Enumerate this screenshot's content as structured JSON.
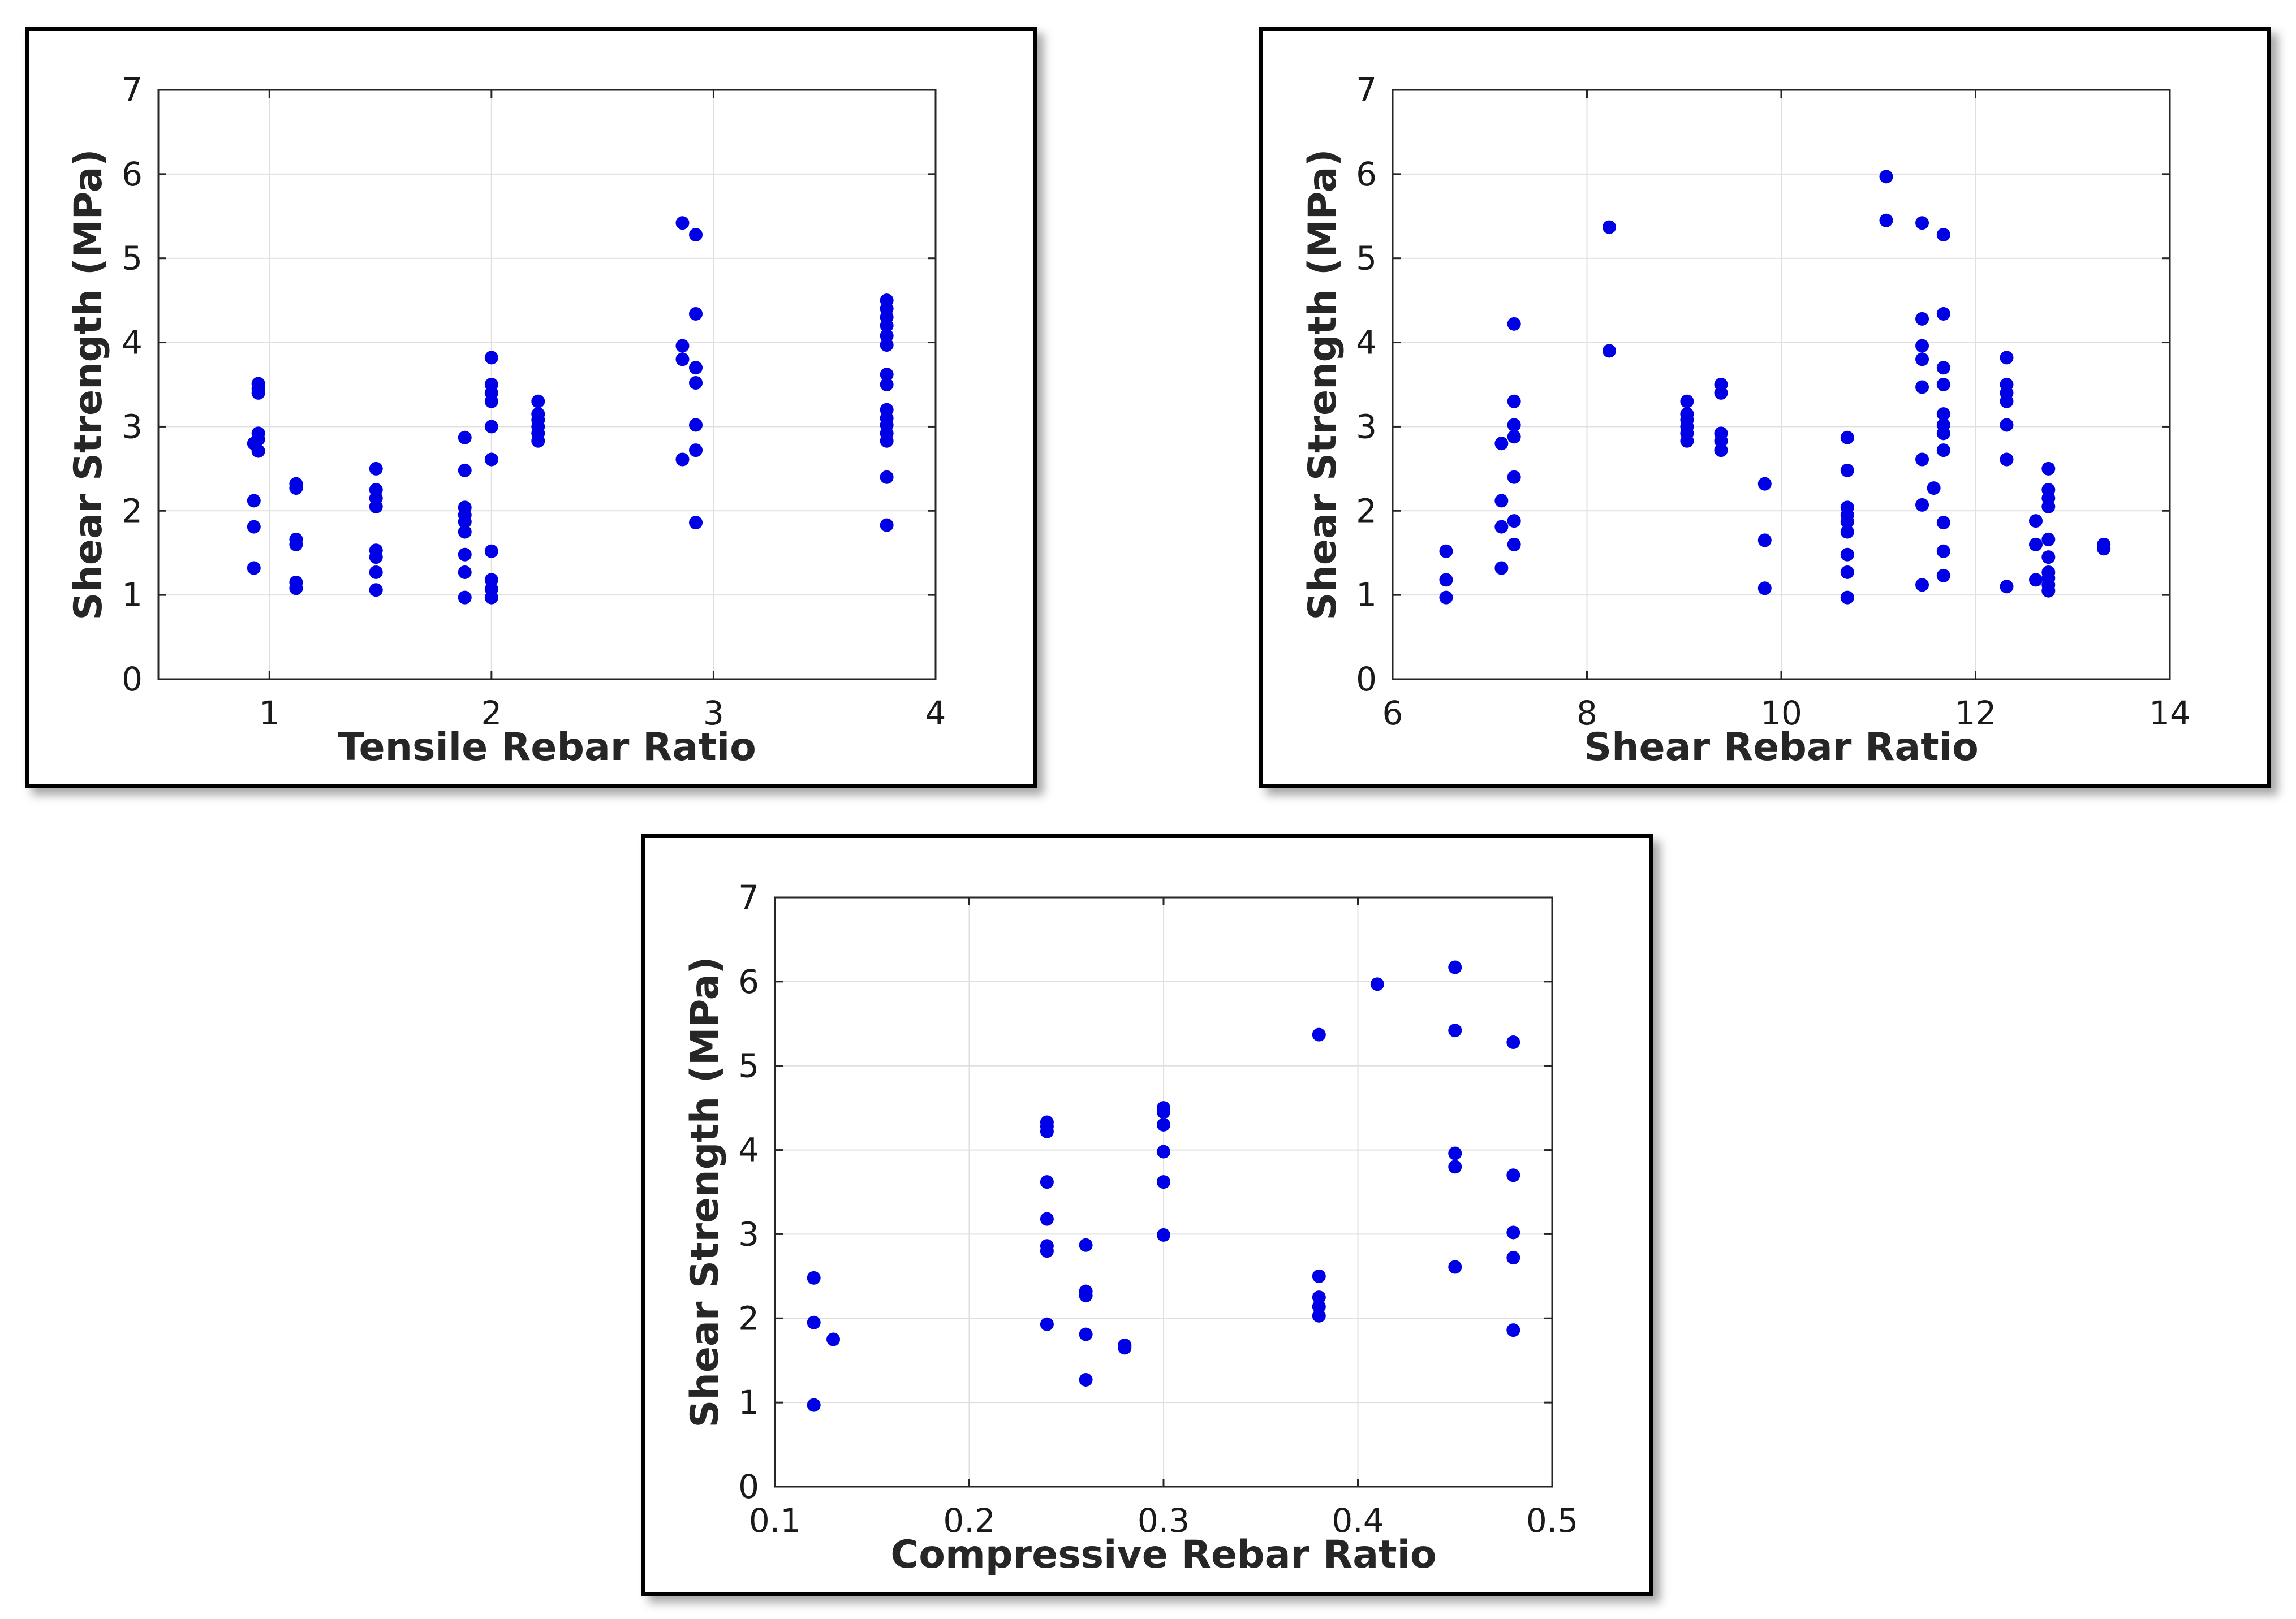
{
  "colors": {
    "marker": "#0000e6",
    "axes": "#262626",
    "grid": "#dfdfdf"
  },
  "chart_data": [
    {
      "type": "scatter",
      "xlabel": "Tensile Rebar Ratio",
      "ylabel": "Shear Strength (MPa)",
      "xlim": [
        0.5,
        4
      ],
      "ylim": [
        0,
        7
      ],
      "xticks": [
        1,
        2,
        3,
        4
      ],
      "xtick_labels": [
        "1",
        "2",
        "3",
        "4"
      ],
      "yticks": [
        0,
        1,
        2,
        3,
        4,
        5,
        6,
        7
      ],
      "ytick_labels": [
        "0",
        "1",
        "2",
        "3",
        "4",
        "5",
        "6",
        "7"
      ],
      "grid": true,
      "points": [
        [
          0.93,
          1.32
        ],
        [
          0.93,
          1.81
        ],
        [
          0.93,
          2.12
        ],
        [
          0.93,
          2.8
        ],
        [
          0.95,
          2.71
        ],
        [
          0.95,
          2.85
        ],
        [
          0.95,
          2.92
        ],
        [
          0.95,
          3.4
        ],
        [
          0.95,
          3.45
        ],
        [
          0.95,
          3.51
        ],
        [
          1.12,
          1.08
        ],
        [
          1.12,
          1.15
        ],
        [
          1.12,
          1.6
        ],
        [
          1.12,
          1.66
        ],
        [
          1.12,
          2.27
        ],
        [
          1.12,
          2.32
        ],
        [
          1.48,
          1.06
        ],
        [
          1.48,
          1.27
        ],
        [
          1.48,
          1.45
        ],
        [
          1.48,
          1.53
        ],
        [
          1.48,
          2.05
        ],
        [
          1.48,
          2.15
        ],
        [
          1.48,
          2.25
        ],
        [
          1.48,
          2.5
        ],
        [
          1.88,
          0.97
        ],
        [
          1.88,
          1.27
        ],
        [
          1.88,
          1.48
        ],
        [
          1.88,
          1.75
        ],
        [
          1.88,
          1.87
        ],
        [
          1.88,
          1.95
        ],
        [
          1.88,
          2.04
        ],
        [
          1.88,
          2.48
        ],
        [
          1.88,
          2.87
        ],
        [
          2.0,
          0.97
        ],
        [
          2.0,
          1.07
        ],
        [
          2.0,
          1.18
        ],
        [
          2.0,
          1.52
        ],
        [
          2.0,
          2.61
        ],
        [
          2.0,
          3.0
        ],
        [
          2.0,
          3.3
        ],
        [
          2.0,
          3.4
        ],
        [
          2.0,
          3.5
        ],
        [
          2.0,
          3.82
        ],
        [
          2.21,
          2.83
        ],
        [
          2.21,
          2.92
        ],
        [
          2.21,
          3.0
        ],
        [
          2.21,
          3.08
        ],
        [
          2.21,
          3.15
        ],
        [
          2.21,
          3.3
        ],
        [
          2.86,
          2.61
        ],
        [
          2.86,
          3.8
        ],
        [
          2.86,
          3.96
        ],
        [
          2.86,
          5.42
        ],
        [
          2.92,
          1.86
        ],
        [
          2.92,
          2.72
        ],
        [
          2.92,
          3.02
        ],
        [
          2.92,
          3.52
        ],
        [
          2.92,
          3.7
        ],
        [
          2.92,
          4.34
        ],
        [
          2.92,
          5.28
        ],
        [
          3.78,
          1.83
        ],
        [
          3.78,
          2.4
        ],
        [
          3.78,
          2.83
        ],
        [
          3.78,
          2.92
        ],
        [
          3.78,
          3.02
        ],
        [
          3.78,
          3.1
        ],
        [
          3.78,
          3.2
        ],
        [
          3.78,
          3.5
        ],
        [
          3.78,
          3.62
        ],
        [
          3.78,
          3.97
        ],
        [
          3.78,
          4.08
        ],
        [
          3.78,
          4.2
        ],
        [
          3.78,
          4.3
        ],
        [
          3.78,
          4.4
        ],
        [
          3.78,
          4.5
        ]
      ]
    },
    {
      "type": "scatter",
      "xlabel": "Shear Rebar Ratio",
      "ylabel": "Shear Strength (MPa)",
      "xlim": [
        6,
        14
      ],
      "ylim": [
        0,
        7
      ],
      "xticks": [
        6,
        8,
        10,
        12,
        14
      ],
      "xtick_labels": [
        "6",
        "8",
        "10",
        "12",
        "14"
      ],
      "yticks": [
        0,
        1,
        2,
        3,
        4,
        5,
        6,
        7
      ],
      "ytick_labels": [
        "0",
        "1",
        "2",
        "3",
        "4",
        "5",
        "6",
        "7"
      ],
      "grid": true,
      "points": [
        [
          6.55,
          0.97
        ],
        [
          6.55,
          1.18
        ],
        [
          6.55,
          1.52
        ],
        [
          7.12,
          1.32
        ],
        [
          7.12,
          1.81
        ],
        [
          7.12,
          2.12
        ],
        [
          7.12,
          2.8
        ],
        [
          7.25,
          1.6
        ],
        [
          7.25,
          1.88
        ],
        [
          7.25,
          2.4
        ],
        [
          7.25,
          2.88
        ],
        [
          7.25,
          3.02
        ],
        [
          7.25,
          3.3
        ],
        [
          7.25,
          4.22
        ],
        [
          8.23,
          3.9
        ],
        [
          8.23,
          5.37
        ],
        [
          9.03,
          2.83
        ],
        [
          9.03,
          2.92
        ],
        [
          9.03,
          3.0
        ],
        [
          9.03,
          3.08
        ],
        [
          9.03,
          3.15
        ],
        [
          9.03,
          3.3
        ],
        [
          9.38,
          2.72
        ],
        [
          9.38,
          2.83
        ],
        [
          9.38,
          2.92
        ],
        [
          9.38,
          3.4
        ],
        [
          9.38,
          3.5
        ],
        [
          9.83,
          1.08
        ],
        [
          9.83,
          1.65
        ],
        [
          9.83,
          2.32
        ],
        [
          10.68,
          0.97
        ],
        [
          10.68,
          1.27
        ],
        [
          10.68,
          1.48
        ],
        [
          10.68,
          1.75
        ],
        [
          10.68,
          1.87
        ],
        [
          10.68,
          1.95
        ],
        [
          10.68,
          2.04
        ],
        [
          10.68,
          2.48
        ],
        [
          10.68,
          2.87
        ],
        [
          11.08,
          5.45
        ],
        [
          11.08,
          5.97
        ],
        [
          11.45,
          1.12
        ],
        [
          11.45,
          2.07
        ],
        [
          11.45,
          2.61
        ],
        [
          11.45,
          3.47
        ],
        [
          11.45,
          3.8
        ],
        [
          11.45,
          3.96
        ],
        [
          11.45,
          4.28
        ],
        [
          11.45,
          5.42
        ],
        [
          11.57,
          2.27
        ],
        [
          11.67,
          1.23
        ],
        [
          11.67,
          1.52
        ],
        [
          11.67,
          1.86
        ],
        [
          11.67,
          2.72
        ],
        [
          11.67,
          2.92
        ],
        [
          11.67,
          3.02
        ],
        [
          11.67,
          3.15
        ],
        [
          11.67,
          3.5
        ],
        [
          11.67,
          3.7
        ],
        [
          11.67,
          4.34
        ],
        [
          11.67,
          5.28
        ],
        [
          12.32,
          1.1
        ],
        [
          12.32,
          2.61
        ],
        [
          12.32,
          3.02
        ],
        [
          12.32,
          3.3
        ],
        [
          12.32,
          3.4
        ],
        [
          12.32,
          3.5
        ],
        [
          12.32,
          3.82
        ],
        [
          12.62,
          1.18
        ],
        [
          12.62,
          1.6
        ],
        [
          12.62,
          1.88
        ],
        [
          12.75,
          1.05
        ],
        [
          12.75,
          1.12
        ],
        [
          12.75,
          1.2
        ],
        [
          12.75,
          1.27
        ],
        [
          12.75,
          1.45
        ],
        [
          12.75,
          1.66
        ],
        [
          12.75,
          2.05
        ],
        [
          12.75,
          2.15
        ],
        [
          12.75,
          2.25
        ],
        [
          12.75,
          2.5
        ],
        [
          13.32,
          1.55
        ],
        [
          13.32,
          1.6
        ]
      ]
    },
    {
      "type": "scatter",
      "xlabel": "Compressive Rebar Ratio",
      "ylabel": "Shear Strength (MPa)",
      "xlim": [
        0.1,
        0.5
      ],
      "ylim": [
        0,
        7
      ],
      "xticks": [
        0.1,
        0.2,
        0.3,
        0.4,
        0.5
      ],
      "xtick_labels": [
        "0.1",
        "0.2",
        "0.3",
        "0.4",
        "0.5"
      ],
      "yticks": [
        0,
        1,
        2,
        3,
        4,
        5,
        6,
        7
      ],
      "ytick_labels": [
        "0",
        "1",
        "2",
        "3",
        "4",
        "5",
        "6",
        "7"
      ],
      "grid": true,
      "points": [
        [
          0.12,
          0.97
        ],
        [
          0.12,
          1.95
        ],
        [
          0.12,
          2.48
        ],
        [
          0.13,
          1.75
        ],
        [
          0.24,
          1.93
        ],
        [
          0.24,
          2.8
        ],
        [
          0.24,
          2.86
        ],
        [
          0.24,
          3.18
        ],
        [
          0.24,
          3.62
        ],
        [
          0.24,
          4.22
        ],
        [
          0.24,
          4.28
        ],
        [
          0.24,
          4.33
        ],
        [
          0.26,
          1.27
        ],
        [
          0.26,
          1.81
        ],
        [
          0.26,
          2.27
        ],
        [
          0.26,
          2.32
        ],
        [
          0.26,
          2.87
        ],
        [
          0.28,
          1.65
        ],
        [
          0.28,
          1.68
        ],
        [
          0.3,
          2.99
        ],
        [
          0.3,
          3.62
        ],
        [
          0.3,
          3.98
        ],
        [
          0.3,
          4.3
        ],
        [
          0.3,
          4.45
        ],
        [
          0.3,
          4.5
        ],
        [
          0.38,
          2.03
        ],
        [
          0.38,
          2.14
        ],
        [
          0.38,
          2.25
        ],
        [
          0.38,
          2.5
        ],
        [
          0.38,
          5.37
        ],
        [
          0.41,
          5.97
        ],
        [
          0.45,
          2.61
        ],
        [
          0.45,
          3.8
        ],
        [
          0.45,
          3.96
        ],
        [
          0.45,
          5.42
        ],
        [
          0.45,
          6.17
        ],
        [
          0.48,
          1.86
        ],
        [
          0.48,
          2.72
        ],
        [
          0.48,
          3.02
        ],
        [
          0.48,
          3.7
        ],
        [
          0.48,
          5.28
        ]
      ]
    }
  ]
}
